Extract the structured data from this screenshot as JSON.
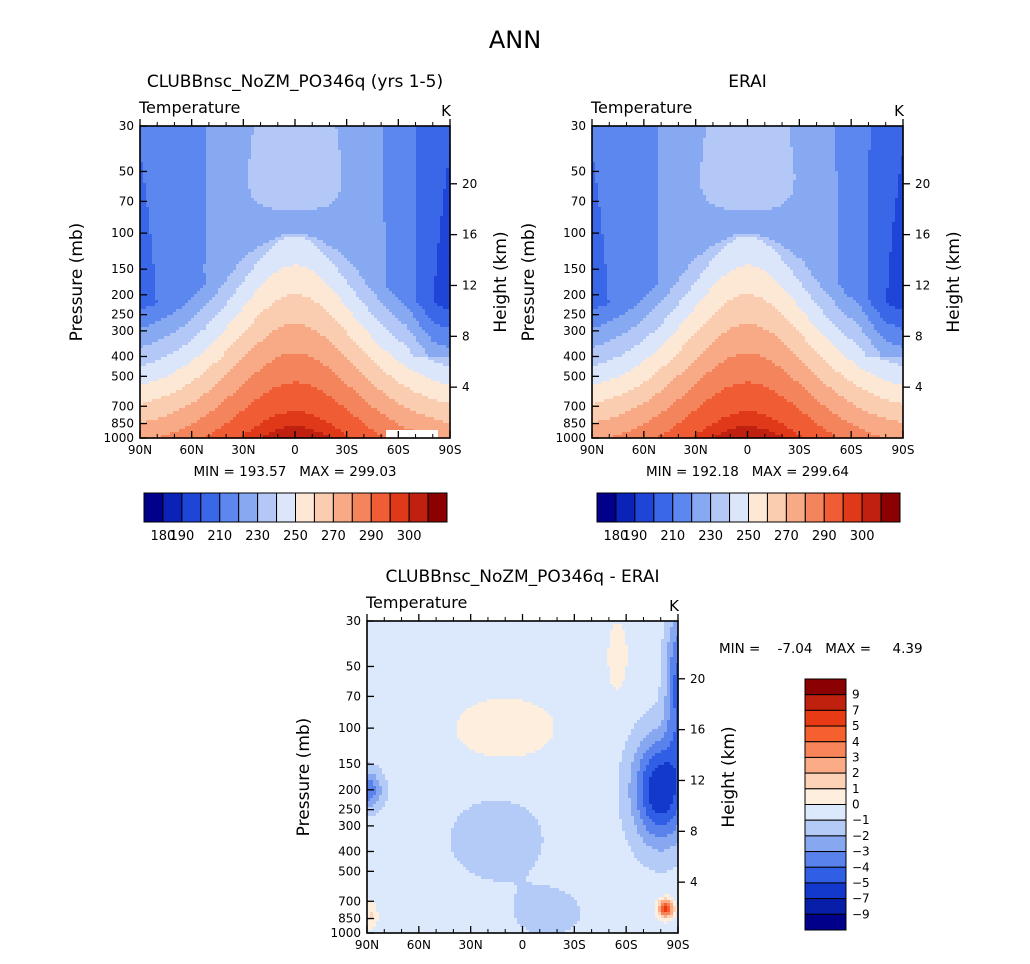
{
  "figure": {
    "title": "ANN"
  },
  "chart_data": [
    {
      "type": "heatmap",
      "panel": "model",
      "title": "CLUBBnsc_NoZM_PO346q (yrs 1-5)",
      "left_string": "Temperature",
      "right_string": "K",
      "xlabel": "",
      "ylabel": "Pressure (mb)",
      "ylabel_right": "Height (km)",
      "x_ticks": [
        "90N",
        "60N",
        "30N",
        "0",
        "30S",
        "60S",
        "90S"
      ],
      "y_ticks": [
        "30",
        "50",
        "70",
        "100",
        "150",
        "200",
        "250",
        "300",
        "400",
        "500",
        "700",
        "850",
        "1000"
      ],
      "y_right_ticks": [
        "20",
        "16",
        "12",
        "8",
        "4"
      ],
      "ylim": [
        1000,
        30
      ],
      "yscale": "log",
      "stats": "MIN = 193.57   MAX = 299.03",
      "min": 193.57,
      "max": 299.03,
      "colorbar_labels": [
        "180",
        "190",
        "210",
        "230",
        "250",
        "270",
        "290",
        "300"
      ],
      "colorbar_colors": [
        "#00008b",
        "#0a22b8",
        "#1f45d8",
        "#3a66e8",
        "#5c87ee",
        "#87a9f2",
        "#b3c8f6",
        "#dbe6fb",
        "#fde8d6",
        "#fbcdb0",
        "#f8a985",
        "#f4845c",
        "#f05c33",
        "#e0391a",
        "#bf2010",
        "#8b0000"
      ]
    },
    {
      "type": "heatmap",
      "panel": "observations",
      "title": "ERAI",
      "left_string": "Temperature",
      "right_string": "K",
      "xlabel": "",
      "ylabel": "Pressure (mb)",
      "ylabel_right": "Height (km)",
      "x_ticks": [
        "90N",
        "60N",
        "30N",
        "0",
        "30S",
        "60S",
        "90S"
      ],
      "y_ticks": [
        "30",
        "50",
        "70",
        "100",
        "150",
        "200",
        "250",
        "300",
        "400",
        "500",
        "700",
        "850",
        "1000"
      ],
      "y_right_ticks": [
        "20",
        "16",
        "12",
        "8",
        "4"
      ],
      "ylim": [
        1000,
        30
      ],
      "yscale": "log",
      "stats": "MIN = 192.18   MAX = 299.64",
      "min": 192.18,
      "max": 299.64,
      "colorbar_labels": [
        "180",
        "190",
        "210",
        "230",
        "250",
        "270",
        "290",
        "300"
      ],
      "colorbar_colors": [
        "#00008b",
        "#0a22b8",
        "#1f45d8",
        "#3a66e8",
        "#5c87ee",
        "#87a9f2",
        "#b3c8f6",
        "#dbe6fb",
        "#fde8d6",
        "#fbcdb0",
        "#f8a985",
        "#f4845c",
        "#f05c33",
        "#e0391a",
        "#bf2010",
        "#8b0000"
      ]
    },
    {
      "type": "heatmap",
      "panel": "difference",
      "title": "CLUBBnsc_NoZM_PO346q - ERAI",
      "left_string": "Temperature",
      "right_string": "K",
      "xlabel": "",
      "ylabel": "Pressure (mb)",
      "ylabel_right": "Height (km)",
      "x_ticks": [
        "90N",
        "60N",
        "30N",
        "0",
        "30S",
        "60S",
        "90S"
      ],
      "y_ticks": [
        "30",
        "50",
        "70",
        "100",
        "150",
        "200",
        "250",
        "300",
        "400",
        "500",
        "700",
        "850",
        "1000"
      ],
      "y_right_ticks": [
        "20",
        "16",
        "12",
        "8",
        "4"
      ],
      "ylim": [
        1000,
        30
      ],
      "yscale": "log",
      "stats": "MIN =    -7.04   MAX =     4.39",
      "min": -7.04,
      "max": 4.39,
      "colorbar_labels": [
        "9",
        "7",
        "5",
        "4",
        "3",
        "2",
        "1",
        "0",
        "-1",
        "-2",
        "-3",
        "-4",
        "-5",
        "-7",
        "-9"
      ],
      "colorbar_colors": [
        "#8b0000",
        "#c0200e",
        "#e83a14",
        "#f5602e",
        "#f8855a",
        "#fbab86",
        "#fdd2b6",
        "#fdeede",
        "#dce8fb",
        "#b5cbf7",
        "#87a7f1",
        "#5a82ec",
        "#305fe5",
        "#1238cc",
        "#061ea8",
        "#00008b"
      ]
    }
  ]
}
